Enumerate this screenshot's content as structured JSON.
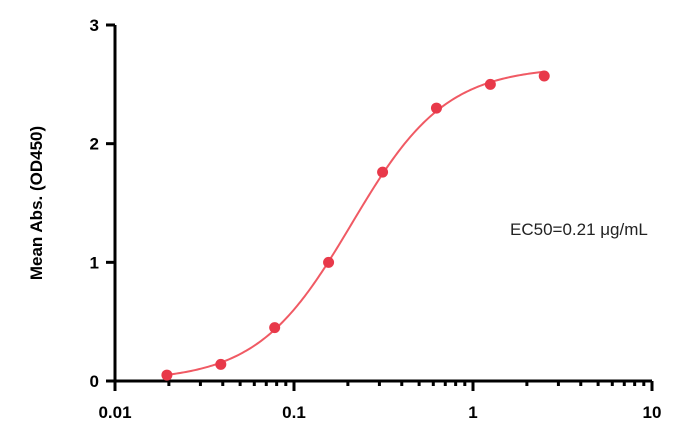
{
  "chart_data": {
    "type": "scatter",
    "title": "",
    "xlabel": "",
    "ylabel": "Mean Abs. (OD450)",
    "x_scale": "log",
    "xlim": [
      0.01,
      10
    ],
    "ylim": [
      0,
      3
    ],
    "x_ticks": [
      0.01,
      0.1,
      1,
      10
    ],
    "x_tick_labels": [
      "0.01",
      "0.1",
      "1",
      "10"
    ],
    "y_ticks": [
      0,
      1,
      2,
      3
    ],
    "y_tick_labels": [
      "0",
      "1",
      "2",
      "3"
    ],
    "grid": false,
    "legend": "none",
    "series": [
      {
        "x": [
          0.0195,
          0.039,
          0.078,
          0.156,
          0.3125,
          0.625,
          1.25,
          2.5
        ],
        "y": [
          0.05,
          0.14,
          0.45,
          1.0,
          1.76,
          2.3,
          2.5,
          2.57
        ],
        "color": "#e8394a"
      }
    ],
    "fit": {
      "model": "4PL",
      "bottom": 0.0,
      "top": 2.65,
      "ec50": 0.21,
      "hill": 1.65,
      "x_range": [
        0.0195,
        2.5
      ],
      "color": "#f05a64"
    },
    "annotations": [
      {
        "text": "EC50=0.21 μg/mL"
      }
    ]
  }
}
